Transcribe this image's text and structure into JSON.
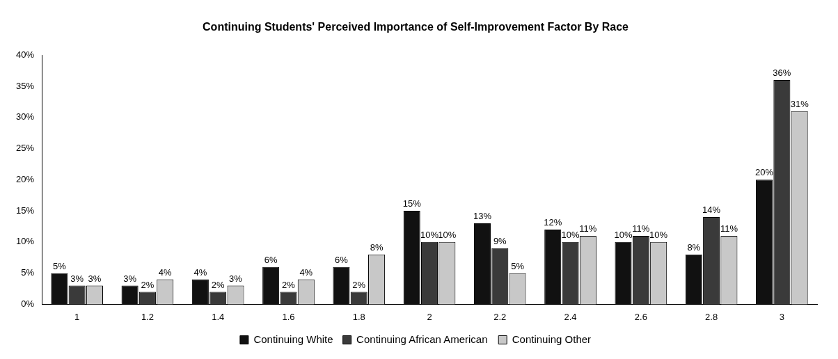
{
  "chart_data": {
    "type": "bar",
    "title": "Continuing Students' Perceived Importance of Self-Improvement Factor By Race",
    "categories": [
      "1",
      "1.2",
      "1.4",
      "1.6",
      "1.8",
      "2",
      "2.2",
      "2.4",
      "2.6",
      "2.8",
      "3"
    ],
    "series": [
      {
        "name": "Continuing White",
        "color": "#111111",
        "values": [
          5,
          3,
          4,
          6,
          6,
          15,
          13,
          12,
          10,
          8,
          20
        ],
        "value_labels": [
          "5%",
          "3%",
          "4%",
          "6%",
          "6%",
          "15%",
          "13%",
          "12%",
          "10%",
          "8%",
          "20%"
        ]
      },
      {
        "name": "Continuing African American",
        "color": "#3a3a3a",
        "values": [
          3,
          2,
          2,
          2,
          2,
          10,
          9,
          10,
          11,
          14,
          36
        ],
        "value_labels": [
          "3%",
          "2%",
          "2%",
          "2%",
          "2%",
          "10%",
          "9%",
          "10%",
          "11%",
          "14%",
          "36%"
        ]
      },
      {
        "name": "Continuing Other",
        "color": "#c8c8c8",
        "values": [
          3,
          4,
          3,
          4,
          8,
          10,
          5,
          11,
          10,
          11,
          31
        ],
        "value_labels": [
          "3%",
          "4%",
          "3%",
          "4%",
          "8%",
          "10%",
          "5%",
          "11%",
          "10%",
          "11%",
          "31%"
        ]
      }
    ],
    "ylim": [
      0,
      40
    ],
    "yticks": [
      {
        "value": 0,
        "label": "0%"
      },
      {
        "value": 5,
        "label": "5%"
      },
      {
        "value": 10,
        "label": "10%"
      },
      {
        "value": 15,
        "label": "15%"
      },
      {
        "value": 20,
        "label": "20%"
      },
      {
        "value": 25,
        "label": "25%"
      },
      {
        "value": 30,
        "label": "30%"
      },
      {
        "value": 35,
        "label": "35%"
      },
      {
        "value": 40,
        "label": "40%"
      }
    ],
    "grid": false,
    "legend": "bottom"
  }
}
